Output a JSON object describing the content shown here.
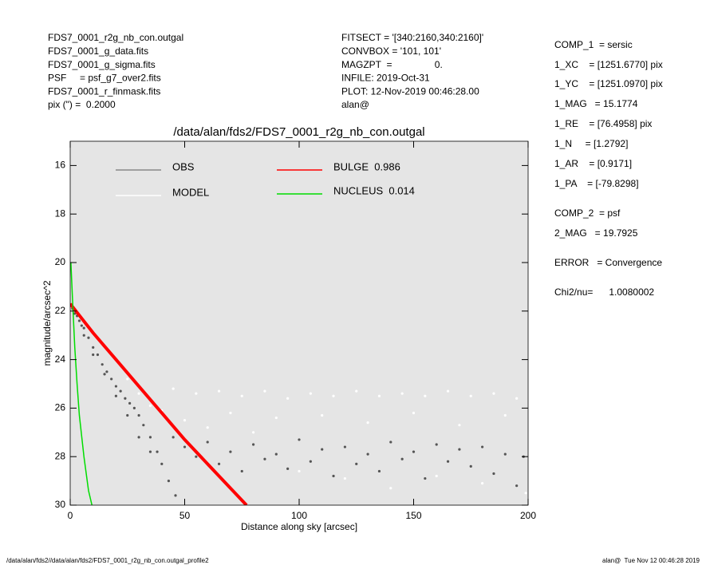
{
  "header": {
    "left": [
      "FDS7_0001_r2g_nb_con.outgal",
      "FDS7_0001_g_data.fits",
      "FDS7_0001_g_sigma.fits",
      "PSF     = psf_g7_over2.fits",
      "FDS7_0001_r_finmask.fits",
      "pix (\") =  0.2000"
    ],
    "middle": [
      "FITSECT = '[340:2160,340:2160]'",
      "CONVBOX = '101, 101'",
      "MAGZPT  =                0.",
      "INFILE: 2019-Oct-31",
      "PLOT: 12-Nov-2019 00:46:28.00",
      "alan@"
    ],
    "right": [
      "COMP_1  = sersic",
      "1_XC    = [1251.6770] pix",
      "1_YC    = [1251.0970] pix",
      "1_MAG   = 15.1774",
      "1_RE    = [76.4958] pix",
      "1_N     = [1.2792]",
      "1_AR    = [0.9171]",
      "1_PA    = [-79.8298]",
      "COMP_2  = psf",
      "2_MAG   = 19.7925",
      "ERROR   = Convergence",
      "Chi2/nu=      1.0080002"
    ]
  },
  "footer": {
    "left": "/data/alan/fds2//data/alan/fds2/FDS7_0001_r2g_nb_con.outgal_profile2",
    "right": "alan@  Tue Nov 12 00:46:28 2019"
  },
  "chart_data": {
    "type": "scatter",
    "title": "/data/alan/fds2/FDS7_0001_r2g_nb_con.outgal",
    "x_label": "Distance along sky [arcsec]",
    "y_label": "magnitude/arcsec^2",
    "xlim": [
      0,
      200
    ],
    "xticks": [
      0,
      50,
      100,
      150,
      200
    ],
    "ylim": [
      15,
      30
    ],
    "yticks": [
      16,
      18,
      20,
      22,
      24,
      26,
      28,
      30
    ],
    "y_reversed": true,
    "background": "#e5e5e5",
    "series": [
      {
        "name": "OBS",
        "color": "#555555",
        "mode": "points",
        "x": [
          1,
          2,
          3,
          4,
          5,
          6,
          8,
          10,
          12,
          14,
          16,
          18,
          20,
          22,
          24,
          26,
          28,
          30,
          32,
          35,
          38,
          40,
          43,
          46,
          6,
          10,
          15,
          20,
          25,
          30,
          35,
          45,
          50,
          55,
          60,
          65,
          70,
          75,
          80,
          85,
          90,
          95,
          100,
          105,
          110,
          115,
          120,
          125,
          130,
          135,
          140,
          145,
          150,
          155,
          160,
          165,
          170,
          175,
          180,
          185,
          190,
          195,
          198
        ],
        "values": [
          21.9,
          22.1,
          22.2,
          22.4,
          22.6,
          22.7,
          23.1,
          23.5,
          23.8,
          24.2,
          24.5,
          24.8,
          25.1,
          25.3,
          25.6,
          25.8,
          26.0,
          26.3,
          26.7,
          27.2,
          27.8,
          28.3,
          29.0,
          29.6,
          23.0,
          23.8,
          24.6,
          25.5,
          26.3,
          27.2,
          27.8,
          27.2,
          27.6,
          28.0,
          27.4,
          28.3,
          27.8,
          28.6,
          27.5,
          28.1,
          27.9,
          28.5,
          27.3,
          28.2,
          27.7,
          28.8,
          27.6,
          28.3,
          27.9,
          28.6,
          27.4,
          28.1,
          27.8,
          28.9,
          27.5,
          28.2,
          27.7,
          28.4,
          27.6,
          28.7,
          27.9,
          29.2,
          28.0
        ]
      },
      {
        "name": "MODEL",
        "color": "#ffffff",
        "mode": "points",
        "x": [
          25,
          30,
          35,
          40,
          45,
          50,
          55,
          60,
          65,
          70,
          75,
          80,
          85,
          90,
          95,
          100,
          105,
          110,
          115,
          120,
          125,
          130,
          135,
          140,
          145,
          150,
          155,
          160,
          165,
          170,
          175,
          180,
          185,
          190,
          195,
          199
        ],
        "values": [
          24.8,
          25.4,
          25.9,
          26.1,
          25.2,
          26.5,
          25.4,
          26.8,
          25.3,
          26.2,
          25.5,
          27.0,
          25.3,
          26.4,
          25.6,
          28.6,
          25.4,
          26.3,
          25.5,
          28.9,
          25.3,
          26.6,
          25.5,
          29.3,
          25.4,
          26.2,
          25.5,
          28.8,
          25.3,
          26.7,
          25.5,
          29.1,
          25.4,
          26.3,
          25.6,
          29.5
        ]
      },
      {
        "name": "BULGE  0.986",
        "color": "#ff0000",
        "mode": "line",
        "x": [
          0,
          10,
          20,
          30,
          40,
          50,
          60,
          70,
          77
        ],
        "values": [
          21.7,
          22.9,
          24.0,
          25.1,
          26.2,
          27.3,
          28.3,
          29.3,
          30
        ]
      },
      {
        "name": "NUCLEUS  0.014",
        "color": "#00dd00",
        "mode": "line",
        "x": [
          0.3,
          1,
          2,
          3,
          4,
          6,
          8,
          9.5
        ],
        "values": [
          20.0,
          21.5,
          23.5,
          25.0,
          26.3,
          28.0,
          29.4,
          30
        ]
      }
    ]
  }
}
